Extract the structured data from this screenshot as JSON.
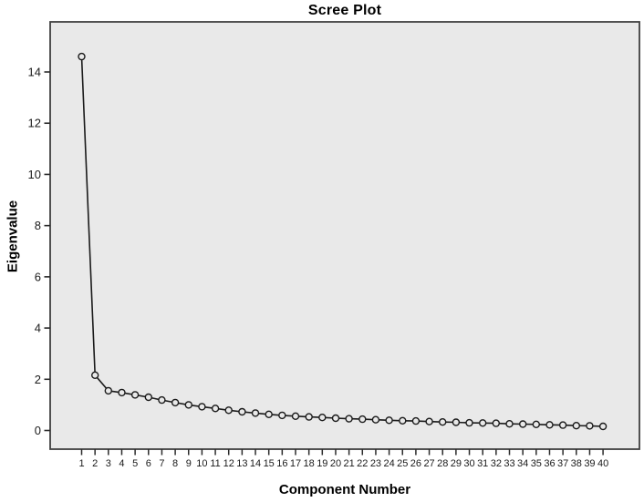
{
  "chart_data": {
    "type": "line",
    "title": "Scree Plot",
    "xlabel": "Component Number",
    "ylabel": "Eigenvalue",
    "series": [
      {
        "name": "Eigenvalues",
        "x": [
          1,
          2,
          3,
          4,
          5,
          6,
          7,
          8,
          9,
          10,
          11,
          12,
          13,
          14,
          15,
          16,
          17,
          18,
          19,
          20,
          21,
          22,
          23,
          24,
          25,
          26,
          27,
          28,
          29,
          30,
          31,
          32,
          33,
          34,
          35,
          36,
          37,
          38,
          39,
          40
        ],
        "values": [
          14.6,
          2.16,
          1.55,
          1.48,
          1.39,
          1.3,
          1.19,
          1.09,
          1.0,
          0.93,
          0.86,
          0.79,
          0.73,
          0.68,
          0.63,
          0.59,
          0.56,
          0.53,
          0.51,
          0.48,
          0.46,
          0.44,
          0.42,
          0.4,
          0.38,
          0.37,
          0.35,
          0.33,
          0.32,
          0.3,
          0.29,
          0.28,
          0.26,
          0.25,
          0.24,
          0.22,
          0.21,
          0.19,
          0.18,
          0.16
        ]
      }
    ],
    "x_tick_labels": [
      "1",
      "2",
      "3",
      "4",
      "5",
      "6",
      "7",
      "8",
      "9",
      "10",
      "11",
      "12",
      "13",
      "14",
      "15",
      "16",
      "17",
      "18",
      "19",
      "20",
      "21",
      "22",
      "23",
      "24",
      "25",
      "26",
      "27",
      "28",
      "29",
      "30",
      "31",
      "32",
      "33",
      "34",
      "35",
      "36",
      "37",
      "38",
      "39",
      "40"
    ],
    "y_ticks": [
      0,
      2,
      4,
      6,
      8,
      10,
      12,
      14
    ],
    "ylim": [
      -0.73,
      15.96
    ],
    "xlim": [
      1,
      40
    ],
    "grid": false,
    "legend": "none",
    "marker": "open-circle",
    "colors": {
      "plot_background": "#e9e9e9",
      "page_background": "#ffffff",
      "plot_border": "#3f3f3f",
      "line": "#1a1a1a",
      "marker_stroke": "#1a1a1a",
      "tick": "#2b2b2b",
      "tick_label": "#1a1a1a",
      "title_text": "#000000"
    }
  }
}
